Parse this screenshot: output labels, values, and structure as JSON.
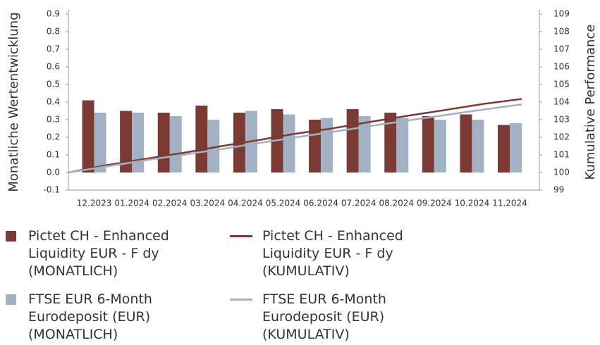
{
  "chart_data": {
    "type": "bar",
    "categories": [
      null,
      "12.2023",
      "01.2024",
      "02.2024",
      "03.2024",
      "04.2024",
      "05.2024",
      "06.2024",
      "07.2024",
      "08.2024",
      "09.2024",
      "10.2024",
      "11.2024"
    ],
    "y_label": "Monatliche Wertentwicklung",
    "y2_label": "Kumulative Performance",
    "ylim": [
      -0.1,
      0.9
    ],
    "yticks": [
      -0.1,
      {
        "value": 0,
        "label": "0.0"
      },
      0.1,
      0.2,
      0.3,
      0.4,
      0.5,
      0.6,
      0.7,
      0.8,
      0.9
    ],
    "y2lim": [
      99,
      109
    ],
    "y2ticks": [
      99,
      100,
      101,
      102,
      103,
      104,
      105,
      106,
      107,
      108,
      109
    ],
    "series": [
      {
        "name": "Pictet CH - Enhanced Liquidity EUR - F dy (MONATLICH)",
        "type": "bar",
        "color": "#7b3a33",
        "values": [
          null,
          0.41,
          0.35,
          0.34,
          0.38,
          0.34,
          0.36,
          0.3,
          0.36,
          0.34,
          0.32,
          0.33,
          0.27
        ]
      },
      {
        "name": "Pictet CH - Enhanced Liquidity EUR - F dy (KUMULATIV)",
        "type": "line",
        "axis": "y2",
        "color": "#7b3a33",
        "values": [
          100,
          100.41,
          100.76,
          101.1,
          101.48,
          101.83,
          102.2,
          102.51,
          102.88,
          103.23,
          103.56,
          103.9,
          104.18
        ]
      },
      {
        "name": "FTSE EUR 6-Month Eurodeposit (EUR) (MONATLICH)",
        "type": "bar",
        "color": "#a3b1c4",
        "values": [
          null,
          0.34,
          0.34,
          0.32,
          0.3,
          0.35,
          0.33,
          0.31,
          0.32,
          0.31,
          0.3,
          0.3,
          0.28
        ]
      },
      {
        "name": "FTSE EUR 6-Month Eurodeposit (EUR) (KUMULATIV)",
        "type": "line",
        "axis": "y2",
        "color": "#a3b1c4",
        "values": [
          100,
          100.34,
          100.68,
          101.0,
          101.31,
          101.66,
          101.99,
          102.31,
          102.64,
          102.96,
          103.27,
          103.58,
          103.87
        ]
      }
    ]
  }
}
